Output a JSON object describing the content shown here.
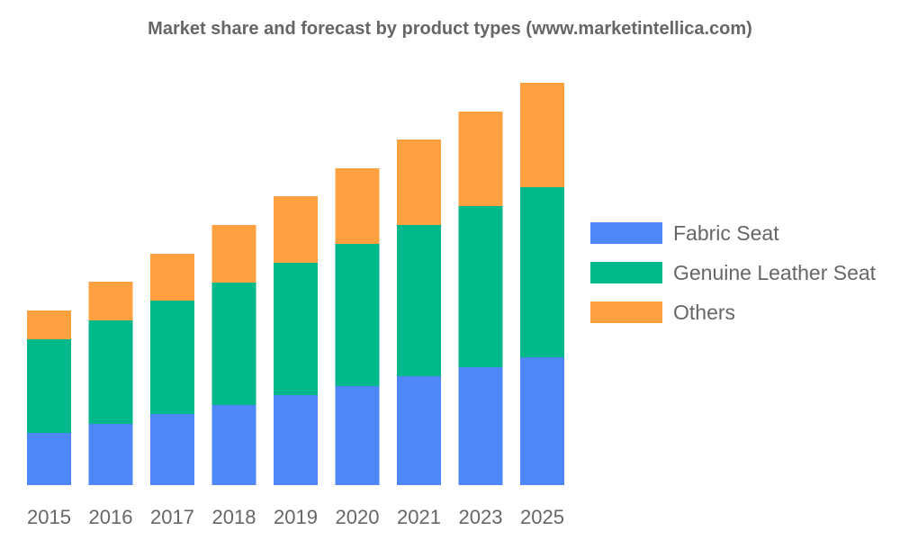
{
  "chart_data": {
    "type": "bar",
    "stacked": true,
    "title": "Market share and forecast by product types (www.marketintellica.com)",
    "xlabel": "",
    "ylabel": "",
    "y_axis_shown": false,
    "grid": false,
    "legend_position": "right",
    "categories": [
      "2015",
      "2016",
      "2017",
      "2018",
      "2019",
      "2020",
      "2021",
      "2023",
      "2025"
    ],
    "series": [
      {
        "name": "Fabric Seat",
        "color": "#4e88f8",
        "values": [
          58,
          68,
          79,
          89,
          100,
          110,
          121,
          131,
          142
        ]
      },
      {
        "name": "Genuine Leather Seat",
        "color": "#00b98a",
        "values": [
          104,
          115,
          126,
          136,
          147,
          158,
          168,
          179,
          189
        ]
      },
      {
        "name": "Others",
        "color": "#ffa041",
        "values": [
          32,
          43,
          52,
          64,
          74,
          84,
          95,
          105,
          116
        ]
      }
    ],
    "ylim": [
      0,
      450
    ]
  }
}
